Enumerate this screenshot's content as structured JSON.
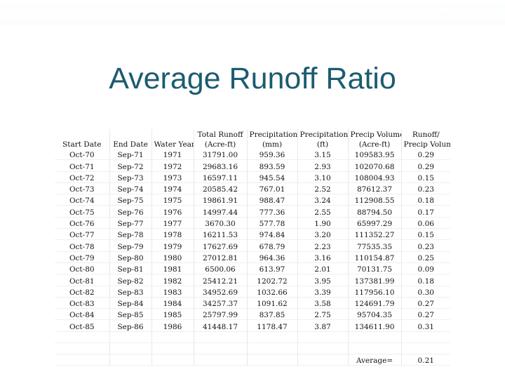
{
  "title": "Average Runoff Ratio",
  "headers": {
    "row1": [
      "",
      "",
      "",
      "Total Runoff",
      "Precipitation",
      "Precipitation",
      "Precip Volume",
      "Runoff/"
    ],
    "row2": [
      "Start Date",
      "End Date",
      "Water Year",
      "(Acre-ft)",
      "(mm)",
      "(ft)",
      "(Acre-ft)",
      "Precip Volume"
    ]
  },
  "rows": [
    [
      "Oct-70",
      "Sep-71",
      "1971",
      "31791.00",
      "959.36",
      "3.15",
      "109583.95",
      "0.29"
    ],
    [
      "Oct-71",
      "Sep-72",
      "1972",
      "29683.16",
      "893.59",
      "2.93",
      "102070.68",
      "0.29"
    ],
    [
      "Oct-72",
      "Sep-73",
      "1973",
      "16597.11",
      "945.54",
      "3.10",
      "108004.93",
      "0.15"
    ],
    [
      "Oct-73",
      "Sep-74",
      "1974",
      "20585.42",
      "767.01",
      "2.52",
      "87612.37",
      "0.23"
    ],
    [
      "Oct-74",
      "Sep-75",
      "1975",
      "19861.91",
      "988.47",
      "3.24",
      "112908.55",
      "0.18"
    ],
    [
      "Oct-75",
      "Sep-76",
      "1976",
      "14997.44",
      "777.36",
      "2.55",
      "88794.50",
      "0.17"
    ],
    [
      "Oct-76",
      "Sep-77",
      "1977",
      "3670.30",
      "577.78",
      "1.90",
      "65997.29",
      "0.06"
    ],
    [
      "Oct-77",
      "Sep-78",
      "1978",
      "16211.53",
      "974.84",
      "3.20",
      "111352.27",
      "0.15"
    ],
    [
      "Oct-78",
      "Sep-79",
      "1979",
      "17627.69",
      "678.79",
      "2.23",
      "77535.35",
      "0.23"
    ],
    [
      "Oct-79",
      "Sep-80",
      "1980",
      "27012.81",
      "964.36",
      "3.16",
      "110154.87",
      "0.25"
    ],
    [
      "Oct-80",
      "Sep-81",
      "1981",
      "6500.06",
      "613.97",
      "2.01",
      "70131.75",
      "0.09"
    ],
    [
      "Oct-81",
      "Sep-82",
      "1982",
      "25412.21",
      "1202.72",
      "3.95",
      "137381.99",
      "0.18"
    ],
    [
      "Oct-82",
      "Sep-83",
      "1983",
      "34952.69",
      "1032.66",
      "3.39",
      "117956.10",
      "0.30"
    ],
    [
      "Oct-83",
      "Sep-84",
      "1984",
      "34257.37",
      "1091.62",
      "3.58",
      "124691.79",
      "0.27"
    ],
    [
      "Oct-84",
      "Sep-85",
      "1985",
      "25797.99",
      "837.85",
      "2.75",
      "95704.35",
      "0.27"
    ],
    [
      "Oct-85",
      "Sep-86",
      "1986",
      "41448.17",
      "1178.47",
      "3.87",
      "134611.90",
      "0.31"
    ]
  ],
  "average_label": "Average=",
  "average_value": "0.21"
}
